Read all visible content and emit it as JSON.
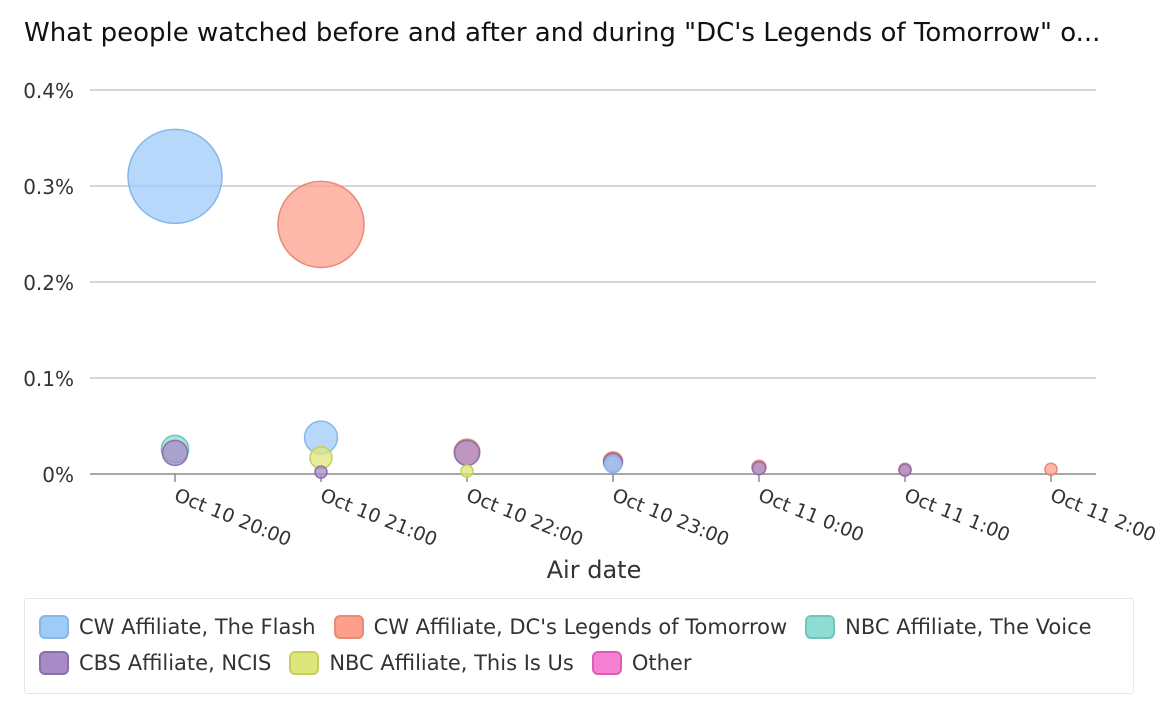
{
  "chart_data": {
    "type": "scatter",
    "title": "What people watched before and after and during \"DC's Legends of Tomorrow\" o...",
    "xlabel": "Air date",
    "ylabel": "",
    "x_ticks": [
      "Oct 10 20:00",
      "Oct 10 21:00",
      "Oct 10 22:00",
      "Oct 10 23:00",
      "Oct 11 0:00",
      "Oct 11 1:00",
      "Oct 11 2:00"
    ],
    "y_ticks": [
      "0%",
      "0.1%",
      "0.2%",
      "0.3%",
      "0.4%"
    ],
    "ylim": [
      0,
      0.4
    ],
    "y_unit": "%",
    "grid": true,
    "legend_position": "bottom",
    "series": [
      {
        "name": "CW Affiliate, The Flash",
        "color": "#9fcbf8",
        "stroke": "#86b7ea",
        "points": [
          {
            "x": "Oct 10 20:00",
            "y": 0.31
          },
          {
            "x": "Oct 10 21:00",
            "y": 0.038
          },
          {
            "x": "Oct 10 23:00",
            "y": 0.01
          }
        ]
      },
      {
        "name": "CW Affiliate, DC's Legends of Tomorrow",
        "color": "#fca08c",
        "stroke": "#e88a76",
        "points": [
          {
            "x": "Oct 10 21:00",
            "y": 0.26
          },
          {
            "x": "Oct 10 22:00",
            "y": 0.023
          },
          {
            "x": "Oct 10 23:00",
            "y": 0.013
          },
          {
            "x": "Oct 11 0:00",
            "y": 0.007
          },
          {
            "x": "Oct 11 1:00",
            "y": 0.005
          },
          {
            "x": "Oct 11 2:00",
            "y": 0.005
          }
        ]
      },
      {
        "name": "NBC Affiliate, The Voice",
        "color": "#8fdcd3",
        "stroke": "#6fc7bc",
        "points": [
          {
            "x": "Oct 10 20:00",
            "y": 0.026
          }
        ]
      },
      {
        "name": "CBS Affiliate, NCIS",
        "color": "#a88bc6",
        "stroke": "#8c6fae",
        "points": [
          {
            "x": "Oct 10 20:00",
            "y": 0.022
          },
          {
            "x": "Oct 10 21:00",
            "y": 0.002
          },
          {
            "x": "Oct 10 22:00",
            "y": 0.022
          },
          {
            "x": "Oct 10 23:00",
            "y": 0.012
          },
          {
            "x": "Oct 11 0:00",
            "y": 0.006
          },
          {
            "x": "Oct 11 1:00",
            "y": 0.004
          }
        ]
      },
      {
        "name": "NBC Affiliate, This Is Us",
        "color": "#dde67a",
        "stroke": "#c6cf5c",
        "points": [
          {
            "x": "Oct 10 21:00",
            "y": 0.017
          },
          {
            "x": "Oct 10 22:00",
            "y": 0.003
          }
        ]
      },
      {
        "name": "Other",
        "color": "#f680d2",
        "stroke": "#dd5cb8",
        "points": []
      }
    ]
  }
}
